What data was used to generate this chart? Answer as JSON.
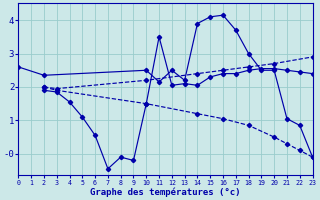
{
  "xlabel": "Graphe des températures (°c)",
  "bg_color": "#cce8e8",
  "grid_color": "#99cccc",
  "line_color": "#0000aa",
  "xlim": [
    0,
    23
  ],
  "ylim": [
    -0.65,
    4.5
  ],
  "xticks": [
    0,
    1,
    2,
    3,
    4,
    5,
    6,
    7,
    8,
    9,
    10,
    11,
    12,
    13,
    14,
    15,
    16,
    17,
    18,
    19,
    20,
    21,
    22,
    23
  ],
  "yticks": [
    0,
    1,
    2,
    3,
    4
  ],
  "ytick_labels": [
    "-0",
    "1",
    "2",
    "3",
    "4"
  ],
  "lines": [
    {
      "x": [
        0,
        2,
        10,
        11,
        12,
        13,
        14,
        15,
        16,
        17,
        18,
        19,
        20,
        21,
        22,
        23
      ],
      "y": [
        2.6,
        2.35,
        2.5,
        2.15,
        2.5,
        2.2,
        3.9,
        4.1,
        4.15,
        3.7,
        3.0,
        2.5,
        2.5,
        1.05,
        0.85,
        -0.1
      ],
      "style": "solid"
    },
    {
      "x": [
        2,
        3,
        4,
        5,
        6,
        7,
        8,
        9,
        10,
        11,
        12,
        13,
        14,
        15,
        16,
        17,
        18,
        19,
        20,
        21,
        22,
        23
      ],
      "y": [
        1.9,
        1.85,
        1.55,
        1.1,
        0.55,
        -0.45,
        -0.1,
        -0.2,
        1.5,
        3.5,
        2.05,
        2.1,
        2.05,
        2.3,
        2.4,
        2.4,
        2.5,
        2.55,
        2.55,
        2.5,
        2.45,
        2.4
      ],
      "style": "solid"
    },
    {
      "x": [
        2,
        3,
        10,
        14,
        16,
        18,
        20,
        23
      ],
      "y": [
        2.0,
        1.95,
        2.2,
        2.4,
        2.5,
        2.6,
        2.7,
        2.9
      ],
      "style": "dashed"
    },
    {
      "x": [
        2,
        3,
        10,
        14,
        16,
        18,
        20,
        21,
        22,
        23
      ],
      "y": [
        2.0,
        1.9,
        1.5,
        1.2,
        1.05,
        0.85,
        0.5,
        0.3,
        0.1,
        -0.1
      ],
      "style": "dashed"
    }
  ]
}
